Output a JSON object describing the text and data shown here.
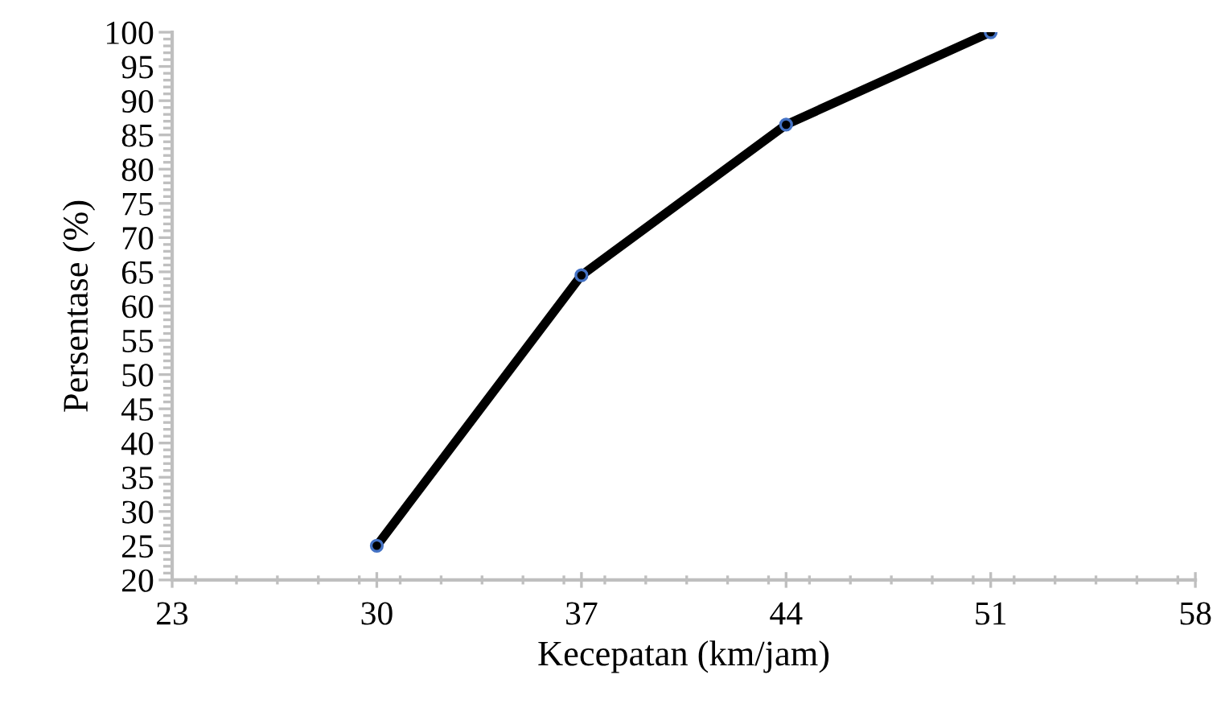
{
  "chart_data": {
    "type": "line",
    "xlabel": "Kecepatan (km/jam)",
    "ylabel": "Persentase (%)",
    "x": [
      30,
      37,
      44,
      51
    ],
    "series": [
      {
        "color": "#000000",
        "values": [
          25,
          64.5,
          86.5,
          100
        ]
      }
    ],
    "marker": "circle",
    "line_style": "solid",
    "grid": false,
    "legend": false,
    "xlim": [
      23,
      58
    ],
    "xticks": [
      23,
      30,
      37,
      44,
      51,
      58
    ],
    "ylim": [
      20,
      100
    ],
    "yticks": [
      20,
      25,
      30,
      35,
      40,
      45,
      50,
      55,
      60,
      65,
      70,
      75,
      80,
      85,
      90,
      95,
      100
    ]
  }
}
